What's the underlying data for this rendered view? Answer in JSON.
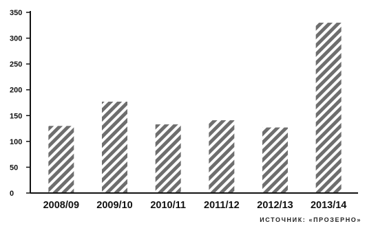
{
  "chart_data": {
    "type": "bar",
    "categories": [
      "2008/09",
      "2009/10",
      "2010/11",
      "2011/12",
      "2012/13",
      "2013/14"
    ],
    "values": [
      130,
      177,
      133,
      141,
      127,
      330
    ],
    "yticks": [
      0,
      50,
      100,
      150,
      200,
      250,
      300,
      350
    ],
    "ylim": [
      0,
      350
    ],
    "grid": false,
    "bar_style": "diagonal-hatch",
    "colors": {
      "hatch": "#6e6e6e",
      "axis": "#111111"
    }
  },
  "source_note": "ИСТОЧНИК: «ПРОЗЕРНО»"
}
